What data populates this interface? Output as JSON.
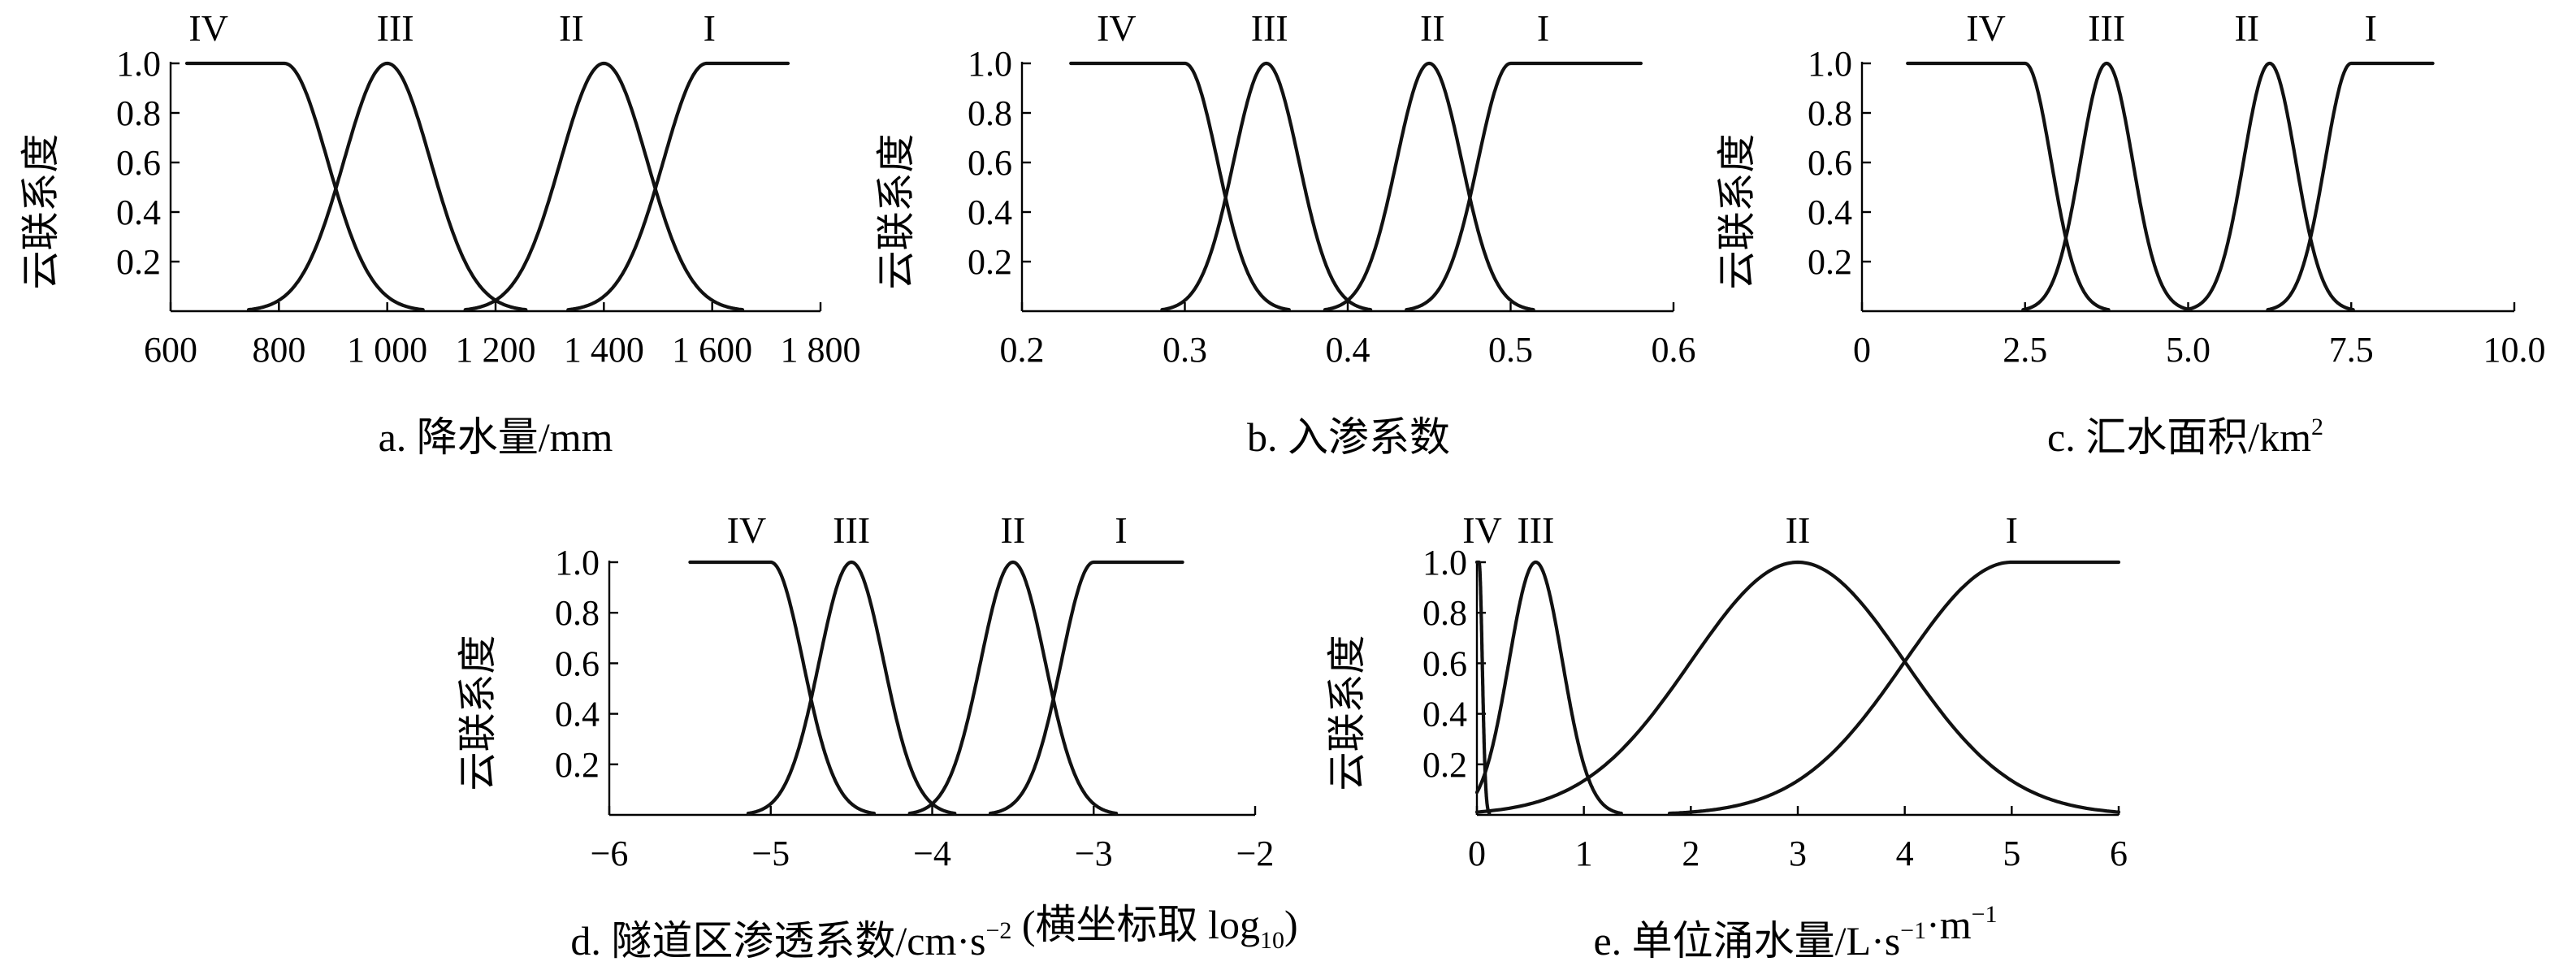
{
  "chart_data": [
    {
      "id": "a",
      "type": "line",
      "caption": "a. 降水量/mm",
      "ylabel": "云联系度",
      "xlim": [
        600,
        1800
      ],
      "ylim": [
        0,
        1.0
      ],
      "xticks": [
        600,
        800,
        1000,
        1200,
        1400,
        1600,
        1800
      ],
      "xtick_labels": [
        "600",
        "800",
        "1 000",
        "1 200",
        "1 400",
        "1 600",
        "1 800"
      ],
      "yticks": [
        0.2,
        0.4,
        0.6,
        0.8,
        1.0
      ],
      "ytick_labels": [
        "0.2",
        "0.4",
        "0.6",
        "0.8",
        "1.0"
      ],
      "series": [
        {
          "name": "IV",
          "shape": "left",
          "flat_from": 630,
          "peak": 810,
          "sigma": 80,
          "label_x": 670
        },
        {
          "name": "III",
          "shape": "bell",
          "peak": 1000,
          "sigma": 80,
          "label_x": 1015
        },
        {
          "name": "II",
          "shape": "bell",
          "peak": 1400,
          "sigma": 80,
          "label_x": 1340
        },
        {
          "name": "I",
          "shape": "right",
          "peak": 1590,
          "flat_to": 1740,
          "sigma": 80,
          "label_x": 1595
        }
      ]
    },
    {
      "id": "b",
      "type": "line",
      "caption": "b. 入渗系数",
      "ylabel": "云联系度",
      "xlim": [
        0.2,
        0.6
      ],
      "ylim": [
        0,
        1.0
      ],
      "xticks": [
        0.2,
        0.3,
        0.4,
        0.5,
        0.6
      ],
      "xtick_labels": [
        "0.2",
        "0.3",
        "0.4",
        "0.5",
        "0.6"
      ],
      "yticks": [
        0.2,
        0.4,
        0.6,
        0.8,
        1.0
      ],
      "ytick_labels": [
        "0.2",
        "0.4",
        "0.6",
        "0.8",
        "1.0"
      ],
      "series": [
        {
          "name": "IV",
          "shape": "left",
          "flat_from": 0.23,
          "peak": 0.3,
          "sigma": 0.02,
          "label_x": 0.258
        },
        {
          "name": "III",
          "shape": "bell",
          "peak": 0.35,
          "sigma": 0.02,
          "label_x": 0.352
        },
        {
          "name": "II",
          "shape": "bell",
          "peak": 0.45,
          "sigma": 0.02,
          "label_x": 0.452
        },
        {
          "name": "I",
          "shape": "right",
          "peak": 0.5,
          "flat_to": 0.58,
          "sigma": 0.02,
          "label_x": 0.52
        }
      ]
    },
    {
      "id": "c",
      "type": "line",
      "caption": "c. 汇水面积/km",
      "caption_sup": "2",
      "ylabel": "云联系度",
      "xlim": [
        0,
        10
      ],
      "ylim": [
        0,
        1.0
      ],
      "xticks": [
        0,
        2.5,
        5.0,
        7.5,
        10.0
      ],
      "xtick_labels": [
        "0",
        "2.5",
        "5.0",
        "7.5",
        "10.0"
      ],
      "yticks": [
        0.2,
        0.4,
        0.6,
        0.8,
        1.0
      ],
      "ytick_labels": [
        "0.2",
        "0.4",
        "0.6",
        "0.8",
        "1.0"
      ],
      "series": [
        {
          "name": "IV",
          "shape": "left",
          "flat_from": 0.7,
          "peak": 2.5,
          "sigma": 0.4,
          "label_x": 1.9
        },
        {
          "name": "III",
          "shape": "bell",
          "peak": 3.75,
          "sigma": 0.4,
          "label_x": 3.75
        },
        {
          "name": "II",
          "shape": "bell",
          "peak": 6.25,
          "sigma": 0.4,
          "label_x": 5.9
        },
        {
          "name": "I",
          "shape": "right",
          "peak": 7.5,
          "flat_to": 8.75,
          "sigma": 0.4,
          "label_x": 7.8
        }
      ]
    },
    {
      "id": "d",
      "type": "line",
      "caption": "d. 隧道区渗透系数/cm·s",
      "caption_sup": "−2",
      "caption_mid": " (横坐标取 log",
      "caption_sub": "10",
      "caption_end": ")",
      "ylabel": "云联系度",
      "xlim": [
        -6,
        -2
      ],
      "ylim": [
        0,
        1.0
      ],
      "xticks": [
        -6,
        -5,
        -4,
        -3,
        -2
      ],
      "xtick_labels": [
        "−6",
        "−5",
        "−4",
        "−3",
        "−2"
      ],
      "yticks": [
        0.2,
        0.4,
        0.6,
        0.8,
        1.0
      ],
      "ytick_labels": [
        "0.2",
        "0.4",
        "0.6",
        "0.8",
        "1.0"
      ],
      "series": [
        {
          "name": "IV",
          "shape": "left",
          "flat_from": -5.5,
          "peak": -5.0,
          "sigma": 0.2,
          "label_x": -5.15
        },
        {
          "name": "III",
          "shape": "bell",
          "peak": -4.5,
          "sigma": 0.2,
          "label_x": -4.5
        },
        {
          "name": "II",
          "shape": "bell",
          "peak": -3.5,
          "sigma": 0.2,
          "label_x": -3.5
        },
        {
          "name": "I",
          "shape": "right",
          "peak": -3.0,
          "flat_to": -2.45,
          "sigma": 0.2,
          "label_x": -2.83
        }
      ]
    },
    {
      "id": "e",
      "type": "line",
      "caption": "e. 单位涌水量/L·s",
      "caption_sup": "−1",
      "caption_mid": "·m",
      "caption_sup2": "−1",
      "ylabel": "云联系度",
      "xlim": [
        0,
        6
      ],
      "ylim": [
        0,
        1.0
      ],
      "xticks": [
        0,
        1,
        2,
        3,
        4,
        5,
        6
      ],
      "xtick_labels": [
        "0",
        "1",
        "2",
        "3",
        "4",
        "5",
        "6"
      ],
      "yticks": [
        0.2,
        0.4,
        0.6,
        0.8,
        1.0
      ],
      "ytick_labels": [
        "0.2",
        "0.4",
        "0.6",
        "0.8",
        "1.0"
      ],
      "series": [
        {
          "name": "IV",
          "shape": "left",
          "flat_from": 0.0,
          "peak": 0.02,
          "sigma": 0.03,
          "label_x": 0.05
        },
        {
          "name": "III",
          "shape": "bell",
          "peak": 0.55,
          "sigma": 0.25,
          "label_x": 0.55
        },
        {
          "name": "II",
          "shape": "bell",
          "peak": 3.0,
          "sigma": 1.0,
          "label_x": 3.0
        },
        {
          "name": "I",
          "shape": "right",
          "peak": 5.0,
          "flat_to": 6.0,
          "sigma": 1.0,
          "label_x": 5.0
        }
      ]
    }
  ]
}
